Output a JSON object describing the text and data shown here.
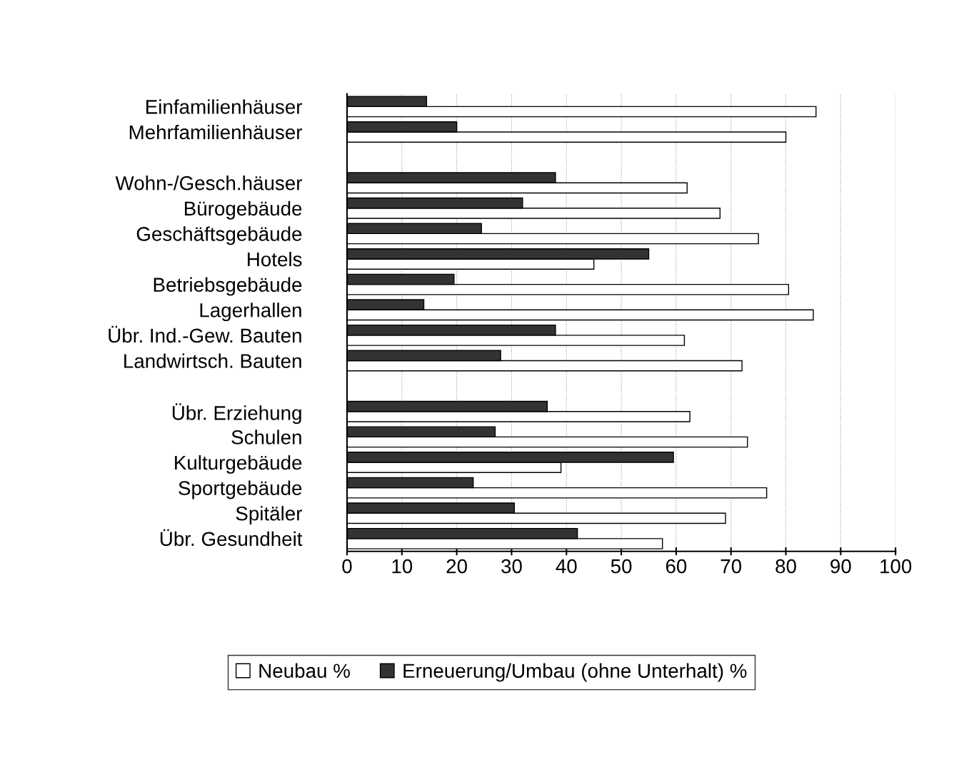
{
  "chart_data": {
    "type": "bar",
    "orientation": "horizontal",
    "categories": [
      "Einfamilienhäuser",
      "Mehrfamilienhäuser",
      null,
      "Wohn-/Gesch.häuser",
      "Bürogebäude",
      "Geschäftsgebäude",
      "Hotels",
      "Betriebsgebäude",
      "Lagerhallen",
      "Übr. Ind.-Gew. Bauten",
      "Landwirtsch. Bauten",
      null,
      "Übr. Erziehung",
      "Schulen",
      "Kulturgebäude",
      "Sportgebäude",
      "Spitäler",
      "Übr. Gesundheit"
    ],
    "series": [
      {
        "name": "Neubau %",
        "color": "#ffffff",
        "values": [
          85.5,
          80,
          null,
          62,
          68,
          75,
          45,
          80.5,
          85,
          61.5,
          72,
          null,
          62.5,
          73,
          39,
          76.5,
          69,
          57.5
        ]
      },
      {
        "name": "Erneuerung/Umbau (ohne Unterhalt) %",
        "color": "#333333",
        "values": [
          14.5,
          20,
          null,
          38,
          32,
          24.5,
          55,
          19.5,
          14,
          38,
          28,
          null,
          36.5,
          27,
          59.5,
          23,
          30.5,
          42
        ]
      }
    ],
    "xlim": [
      0,
      100
    ],
    "xticks": [
      0,
      10,
      20,
      30,
      40,
      50,
      60,
      70,
      80,
      90,
      100
    ],
    "grid": "x",
    "legend": "bottom"
  }
}
